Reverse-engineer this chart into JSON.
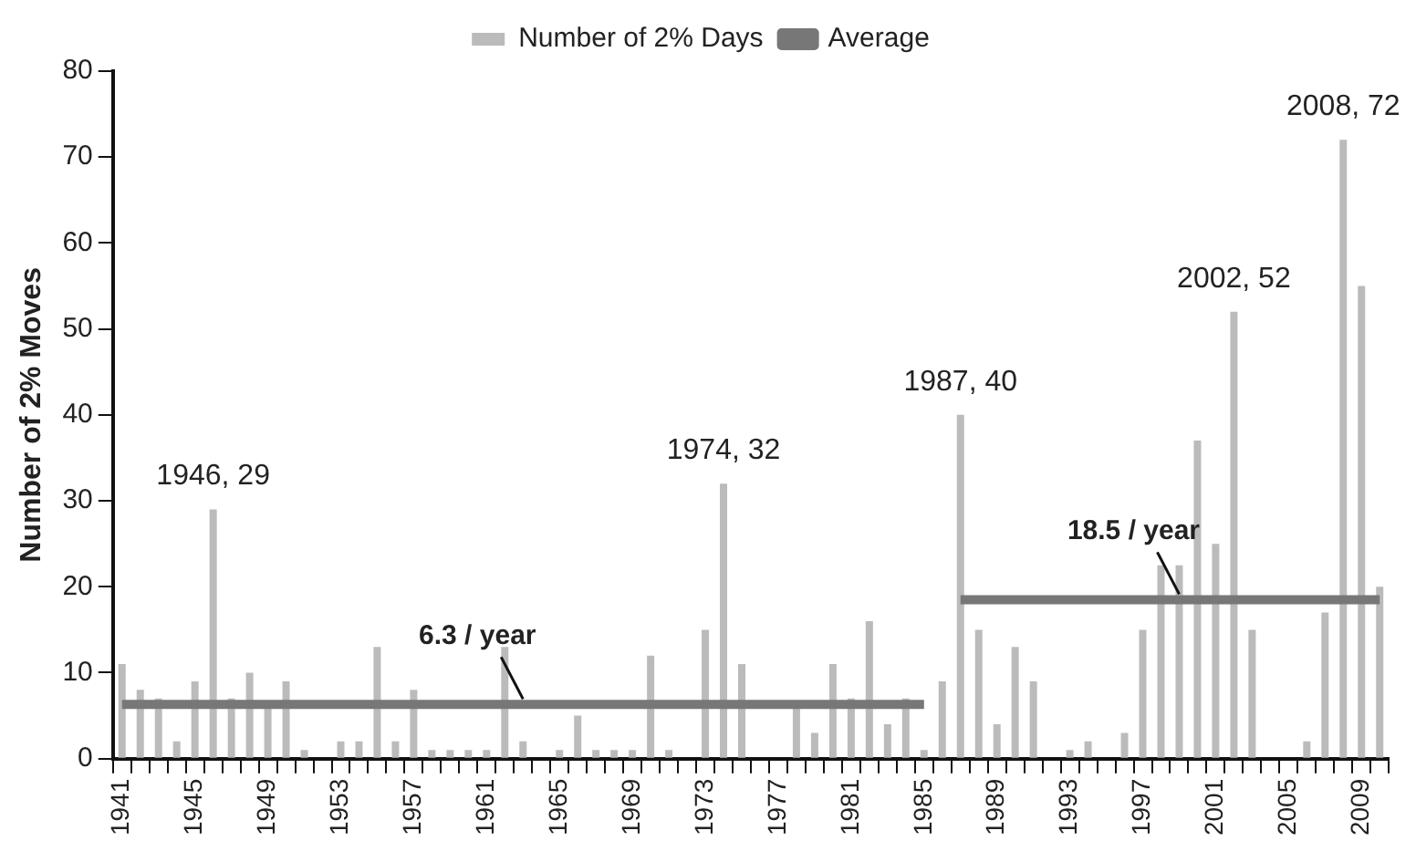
{
  "chart_data": {
    "type": "bar",
    "ylabel": "Number of 2% Moves",
    "categories": [
      "1941",
      null,
      null,
      null,
      "1945",
      null,
      null,
      null,
      "1949",
      null,
      null,
      null,
      "1953",
      null,
      null,
      null,
      "1957",
      null,
      null,
      null,
      "1961",
      null,
      null,
      null,
      "1965",
      null,
      null,
      null,
      "1969",
      null,
      null,
      null,
      "1973",
      null,
      null,
      null,
      "1977",
      null,
      null,
      null,
      "1981",
      null,
      null,
      null,
      "1985",
      null,
      null,
      null,
      "1989",
      null,
      null,
      null,
      "1993",
      null,
      null,
      null,
      "1997",
      null,
      null,
      null,
      "2001",
      null,
      null,
      null,
      "2005",
      null,
      null,
      null,
      "2009",
      null
    ],
    "series": [
      {
        "name": "Number of 2% Days",
        "color": "#bbbbbb",
        "values": [
          11,
          8,
          7,
          2,
          9,
          29,
          7,
          10,
          6,
          9,
          1,
          0,
          2,
          2,
          13,
          2,
          8,
          1,
          1,
          1,
          1,
          13,
          2,
          0,
          1,
          5,
          1,
          1,
          1,
          12,
          1,
          0,
          15,
          32,
          11,
          0,
          0,
          6,
          3,
          11,
          7,
          16,
          4,
          7,
          1,
          9,
          40,
          15,
          4,
          13,
          9,
          0,
          1,
          2,
          0,
          3,
          15,
          22.5,
          22.5,
          37,
          25,
          52,
          15,
          0,
          0,
          2,
          17,
          72,
          55,
          20
        ]
      },
      {
        "name": "Average",
        "type": "line",
        "color": "#777777",
        "values": [
          6.3,
          6.3,
          6.3,
          6.3,
          6.3,
          6.3,
          6.3,
          6.3,
          6.3,
          6.3,
          6.3,
          6.3,
          6.3,
          6.3,
          6.3,
          6.3,
          6.3,
          6.3,
          6.3,
          6.3,
          6.3,
          6.3,
          6.3,
          6.3,
          6.3,
          6.3,
          6.3,
          6.3,
          6.3,
          6.3,
          6.3,
          6.3,
          6.3,
          6.3,
          6.3,
          6.3,
          6.3,
          6.3,
          6.3,
          6.3,
          6.3,
          6.3,
          6.3,
          6.3,
          6.3,
          null,
          18.5,
          18.5,
          18.5,
          18.5,
          18.5,
          18.5,
          18.5,
          18.5,
          18.5,
          18.5,
          18.5,
          18.5,
          18.5,
          18.5,
          18.5,
          18.5,
          18.5,
          18.5,
          18.5,
          18.5,
          18.5,
          18.5,
          18.5,
          18.5
        ]
      }
    ],
    "ylim": [
      0,
      80
    ],
    "yticks": [
      0,
      10,
      20,
      30,
      40,
      50,
      60,
      70,
      80
    ],
    "grid": false,
    "legend": "top",
    "annotations": [
      {
        "text": "1946, 29",
        "y": 29
      },
      {
        "text": "1974, 32",
        "y": 32
      },
      {
        "text": "1987, 40",
        "y": 40
      },
      {
        "text": "2002, 52",
        "y": 52
      },
      {
        "text": "2008, 72",
        "y": 72
      },
      {
        "text": "6.3 / year",
        "y": 6.3
      },
      {
        "text": "18.5 / year",
        "y": 18.5
      }
    ]
  }
}
